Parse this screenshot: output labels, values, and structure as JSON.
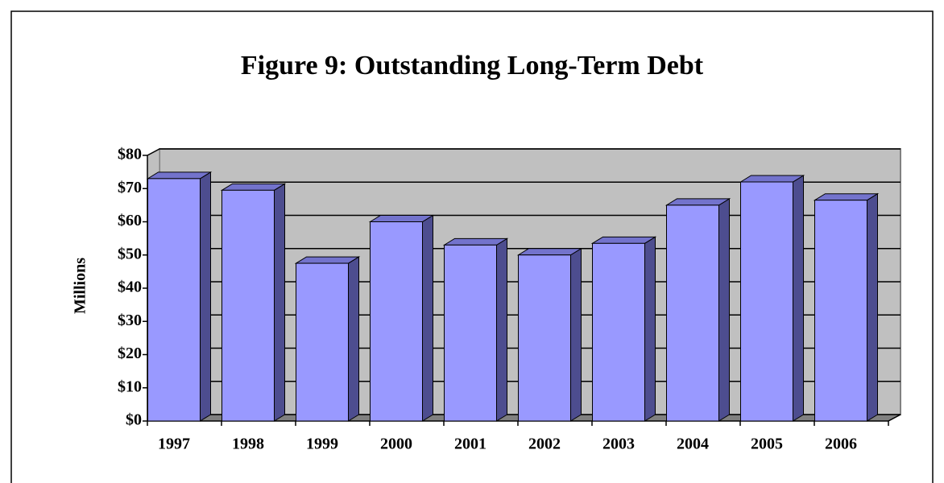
{
  "chart_data": {
    "type": "bar",
    "title": "Figure 9:  Outstanding Long-Term Debt",
    "y_label": "Millions",
    "categories": [
      "1997",
      "1998",
      "1999",
      "2000",
      "2001",
      "2002",
      "2003",
      "2004",
      "2005",
      "2006"
    ],
    "values": [
      73,
      69.5,
      47.5,
      60,
      53,
      50,
      53.5,
      65,
      72,
      66.5
    ],
    "color": "#9999ff",
    "ylim": [
      0,
      80
    ],
    "yticks": [
      {
        "value": 0,
        "label": "$0"
      },
      {
        "value": 10,
        "label": "$10"
      },
      {
        "value": 20,
        "label": "$20"
      },
      {
        "value": 30,
        "label": "$30"
      },
      {
        "value": 40,
        "label": "$40"
      },
      {
        "value": 50,
        "label": "$50"
      },
      {
        "value": 60,
        "label": "$60"
      },
      {
        "value": 70,
        "label": "$70"
      },
      {
        "value": 80,
        "label": "$80"
      }
    ],
    "grid": true
  }
}
